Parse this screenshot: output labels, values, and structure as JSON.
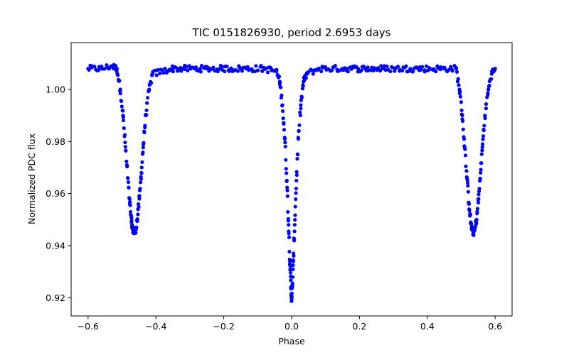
{
  "chart_data": {
    "type": "scatter",
    "title": "TIC 0151826930, period 2.6953 days",
    "xlabel": "Phase",
    "ylabel": "Normalized PDC flux",
    "xlim": [
      -0.65,
      0.65
    ],
    "ylim": [
      0.913,
      1.018
    ],
    "xticks": [
      -0.6,
      -0.4,
      -0.2,
      0.0,
      0.2,
      0.4,
      0.6
    ],
    "xtick_labels": [
      "−0.6",
      "−0.4",
      "−0.2",
      "0.0",
      "0.2",
      "0.4",
      "0.6"
    ],
    "yticks": [
      0.92,
      0.94,
      0.96,
      0.98,
      1.0
    ],
    "ytick_labels": [
      "0.92",
      "0.94",
      "0.96",
      "0.98",
      "1.00"
    ],
    "grid": false,
    "marker_color": "#0000ff",
    "series": [
      {
        "x": [
          -0.6,
          -0.56,
          -0.53,
          -0.515,
          -0.505,
          -0.497,
          -0.49,
          -0.483,
          -0.477,
          -0.472,
          -0.468,
          -0.464,
          -0.46,
          -0.455,
          -0.449,
          -0.443,
          -0.437,
          -0.43,
          -0.42,
          -0.41,
          -0.35,
          -0.25,
          -0.15,
          -0.08,
          -0.045,
          -0.035,
          -0.027,
          -0.02,
          -0.014,
          -0.009,
          -0.005,
          -0.002,
          0.0,
          0.002,
          0.005,
          0.009,
          0.014,
          0.02,
          0.027,
          0.035,
          0.045,
          0.08,
          0.15,
          0.25,
          0.35,
          0.45,
          0.485,
          0.495,
          0.503,
          0.51,
          0.517,
          0.523,
          0.528,
          0.532,
          0.536,
          0.54,
          0.545,
          0.551,
          0.557,
          0.563,
          0.57,
          0.58,
          0.59,
          0.6
        ],
        "y": [
          1.008,
          1.008,
          1.009,
          1.008,
          1.0,
          0.99,
          0.978,
          0.966,
          0.956,
          0.949,
          0.946,
          0.945,
          0.946,
          0.95,
          0.958,
          0.968,
          0.979,
          0.99,
          1.0,
          1.006,
          1.008,
          1.008,
          1.008,
          1.008,
          1.007,
          1.003,
          0.994,
          0.981,
          0.965,
          0.948,
          0.934,
          0.924,
          0.92,
          0.924,
          0.934,
          0.948,
          0.965,
          0.981,
          0.994,
          1.003,
          1.006,
          1.008,
          1.008,
          1.008,
          1.008,
          1.008,
          1.008,
          1.0,
          0.99,
          0.978,
          0.966,
          0.956,
          0.949,
          0.946,
          0.945,
          0.946,
          0.95,
          0.958,
          0.968,
          0.979,
          0.99,
          1.0,
          1.006,
          1.008
        ]
      }
    ]
  }
}
